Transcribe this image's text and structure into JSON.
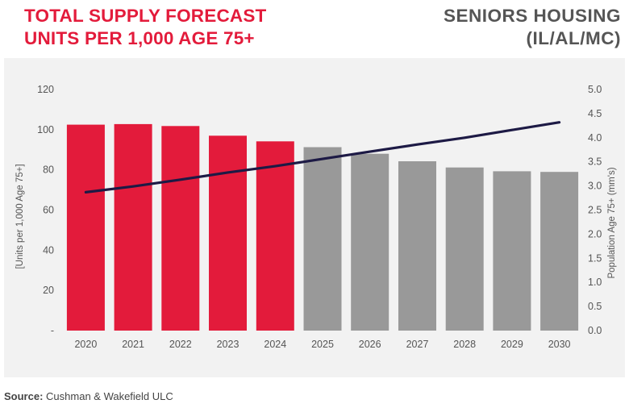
{
  "header": {
    "title_line1": "TOTAL SUPPLY FORECAST",
    "title_line2": "UNITS PER 1,000 AGE 75+",
    "subtitle_line1": "SENIORS HOUSING",
    "subtitle_line2": "(IL/AL/MC)"
  },
  "footer": {
    "source_label": "Source:",
    "source_text": "Cushman & Wakefield ULC"
  },
  "chart_data": {
    "type": "bar",
    "categories": [
      "2020",
      "2021",
      "2022",
      "2023",
      "2024",
      "2025",
      "2026",
      "2027",
      "2028",
      "2029",
      "2030"
    ],
    "series": [
      {
        "type": "bar",
        "axis": "left",
        "values": [
          102.5,
          102.8,
          101.8,
          97.0,
          94.2,
          91.3,
          88.0,
          84.3,
          81.2,
          79.3,
          79.0
        ],
        "colors": [
          "#e31b3b",
          "#e31b3b",
          "#e31b3b",
          "#e31b3b",
          "#e31b3b",
          "#999999",
          "#999999",
          "#999999",
          "#999999",
          "#999999",
          "#999999"
        ]
      },
      {
        "type": "line",
        "axis": "right",
        "color": "#1d1a45",
        "values": [
          2.87,
          2.99,
          3.13,
          3.28,
          3.41,
          3.56,
          3.71,
          3.86,
          4.0,
          4.16,
          4.32
        ]
      }
    ],
    "ylabel": "[Units per 1,000 Age 75+]",
    "ylabel_right": "Population Age 75+ (mm's)",
    "ylim": [
      0,
      120
    ],
    "ylim_right": [
      0,
      5
    ],
    "yticks": [
      "-",
      "20",
      "40",
      "60",
      "80",
      "100",
      "120"
    ],
    "yticks_right": [
      "0.0",
      "0.5",
      "1.0",
      "1.5",
      "2.0",
      "2.5",
      "3.0",
      "3.5",
      "4.0",
      "4.5",
      "5.0"
    ],
    "grid": false,
    "legend": "none"
  }
}
